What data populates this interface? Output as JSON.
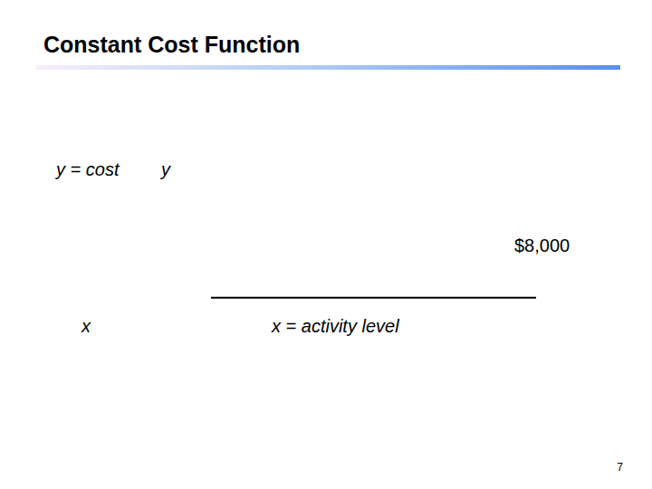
{
  "chart_data": {
    "type": "line",
    "title": "Constant Cost Function",
    "ylabel": "y",
    "xlabel": "x = activity level",
    "annotations": [
      "y = cost",
      "x"
    ],
    "x": [
      0,
      100
    ],
    "values": [
      8000,
      8000
    ],
    "value_labels": [
      null,
      "$8,000"
    ],
    "data_labels": true,
    "color": "#000000",
    "xlim": [
      0,
      100
    ],
    "ylim": [
      0,
      18000
    ],
    "xticks": [],
    "yticks": [],
    "tick_labels": false,
    "grid": false
  },
  "slide": {
    "page": "7"
  }
}
